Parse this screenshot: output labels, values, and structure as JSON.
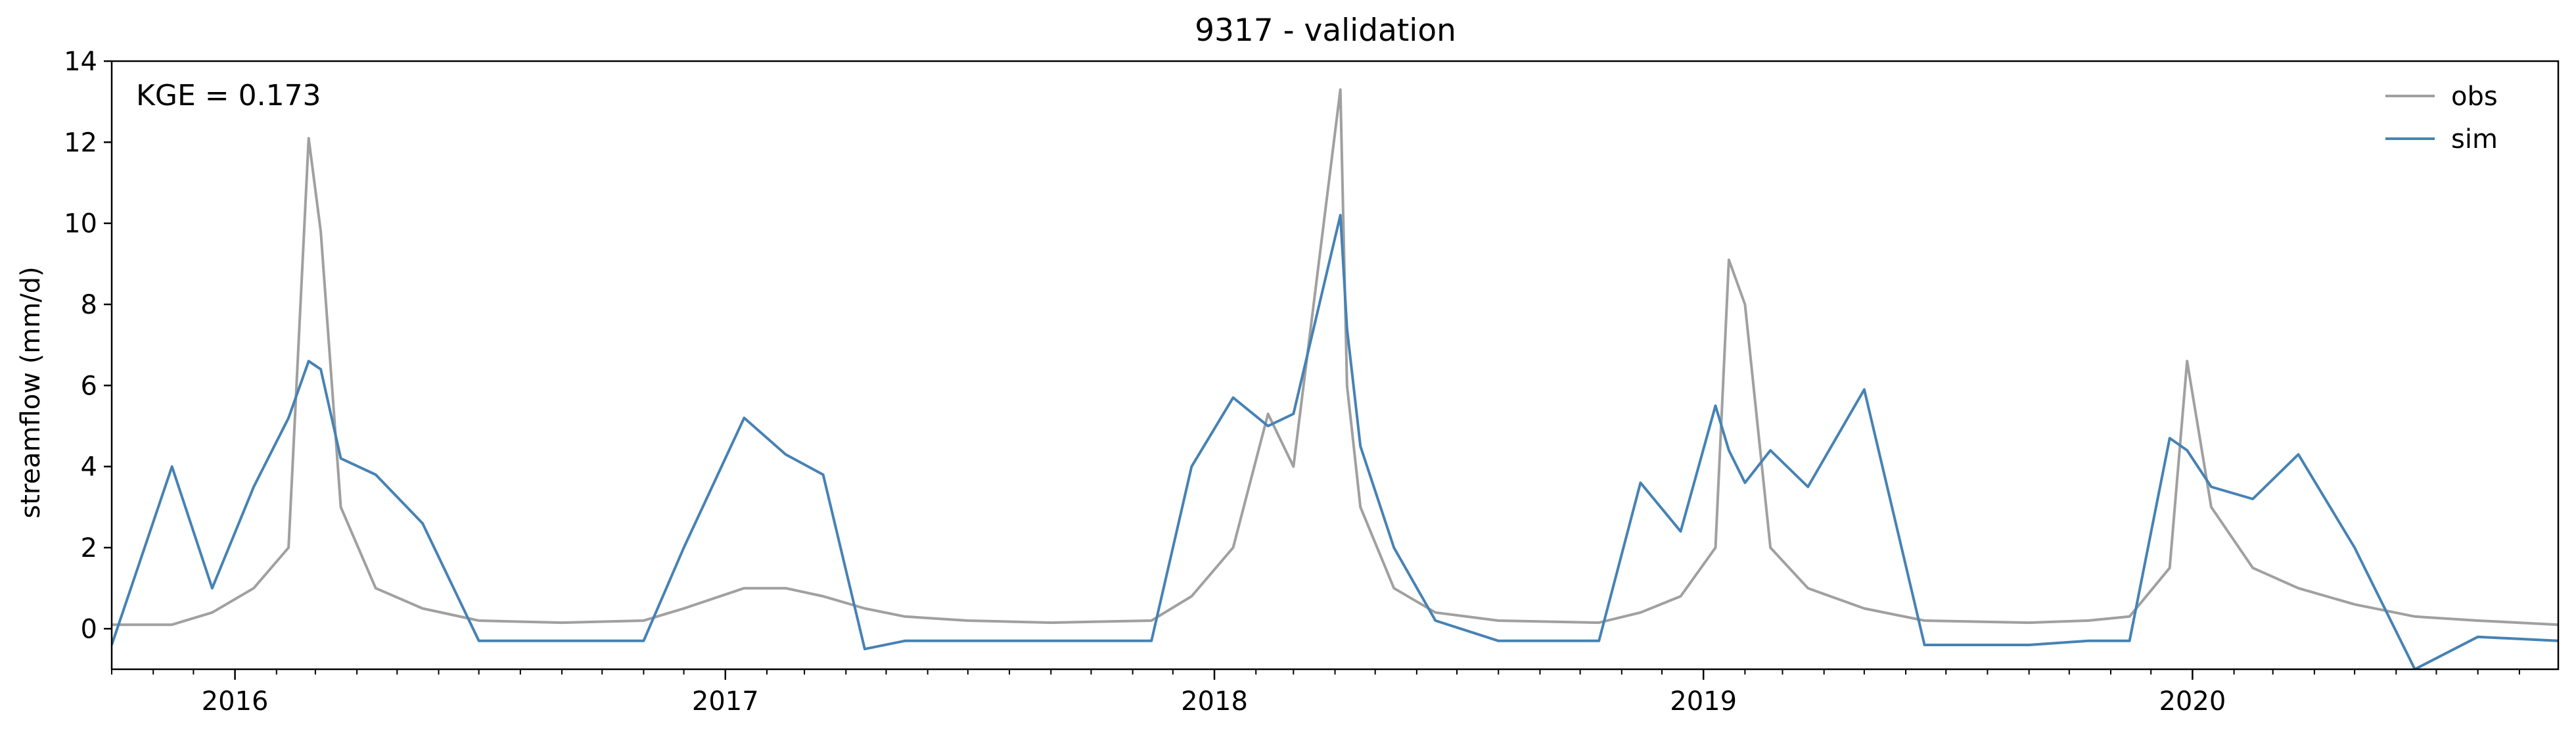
{
  "chart_data": {
    "type": "line",
    "title": "9317 - validation",
    "xlabel": "",
    "ylabel": "streamflow (mm/d)",
    "annotation": "KGE = 0.173",
    "ylim": [
      -1,
      14
    ],
    "xlim": [
      "2015-10-01",
      "2020-09-30"
    ],
    "yticks": [
      "0",
      "2",
      "4",
      "6",
      "8",
      "10",
      "12",
      "14"
    ],
    "xticks": [
      "2016",
      "2017",
      "2018",
      "2019",
      "2020"
    ],
    "legend": "top-right",
    "grid": false,
    "x": [
      "2015-10-01",
      "2015-11-15",
      "2015-12-15",
      "2016-01-15",
      "2016-02-10",
      "2016-02-25",
      "2016-03-05",
      "2016-03-20",
      "2016-04-15",
      "2016-05-20",
      "2016-07-01",
      "2016-09-01",
      "2016-11-01",
      "2016-12-01",
      "2017-01-15",
      "2017-02-15",
      "2017-03-15",
      "2017-04-15",
      "2017-05-15",
      "2017-07-01",
      "2017-09-01",
      "2017-11-15",
      "2017-12-15",
      "2018-01-15",
      "2018-02-10",
      "2018-03-01",
      "2018-04-05",
      "2018-04-10",
      "2018-04-20",
      "2018-05-15",
      "2018-06-15",
      "2018-08-01",
      "2018-10-15",
      "2018-11-15",
      "2018-12-15",
      "2019-01-10",
      "2019-01-20",
      "2019-02-01",
      "2019-02-20",
      "2019-03-20",
      "2019-05-01",
      "2019-06-15",
      "2019-09-01",
      "2019-10-15",
      "2019-11-15",
      "2019-12-15",
      "2019-12-28",
      "2020-01-15",
      "2020-02-15",
      "2020-03-20",
      "2020-05-01",
      "2020-06-15",
      "2020-08-01",
      "2020-09-30"
    ],
    "series": [
      {
        "name": "obs",
        "color": "#a0a0a0",
        "values": [
          0.1,
          0.1,
          0.4,
          1.0,
          2.0,
          12.1,
          9.8,
          3.0,
          1.0,
          0.5,
          0.2,
          0.15,
          0.2,
          0.5,
          1.0,
          1.0,
          0.8,
          0.5,
          0.3,
          0.2,
          0.15,
          0.2,
          0.8,
          2.0,
          5.3,
          4.0,
          13.3,
          6.0,
          3.0,
          1.0,
          0.4,
          0.2,
          0.15,
          0.4,
          0.8,
          2.0,
          9.1,
          8.0,
          2.0,
          1.0,
          0.5,
          0.2,
          0.15,
          0.2,
          0.3,
          1.5,
          6.6,
          3.0,
          1.5,
          1.0,
          0.6,
          0.3,
          0.2,
          0.1
        ]
      },
      {
        "name": "sim",
        "color": "#4682b4",
        "values": [
          -0.4,
          4.0,
          1.0,
          3.5,
          5.2,
          6.6,
          6.4,
          4.2,
          3.8,
          2.6,
          -0.3,
          -0.3,
          -0.3,
          2.0,
          5.2,
          4.3,
          3.8,
          -0.5,
          -0.3,
          -0.3,
          -0.3,
          -0.3,
          4.0,
          5.7,
          5.0,
          5.3,
          10.2,
          7.4,
          4.5,
          2.0,
          0.2,
          -0.3,
          -0.3,
          3.6,
          2.4,
          5.5,
          4.4,
          3.6,
          4.4,
          3.5,
          5.9,
          -0.4,
          -0.4,
          -0.3,
          -0.3,
          4.7,
          4.4,
          3.5,
          3.2,
          4.3,
          2.0,
          -1.0,
          -0.2,
          -0.3
        ]
      }
    ]
  }
}
